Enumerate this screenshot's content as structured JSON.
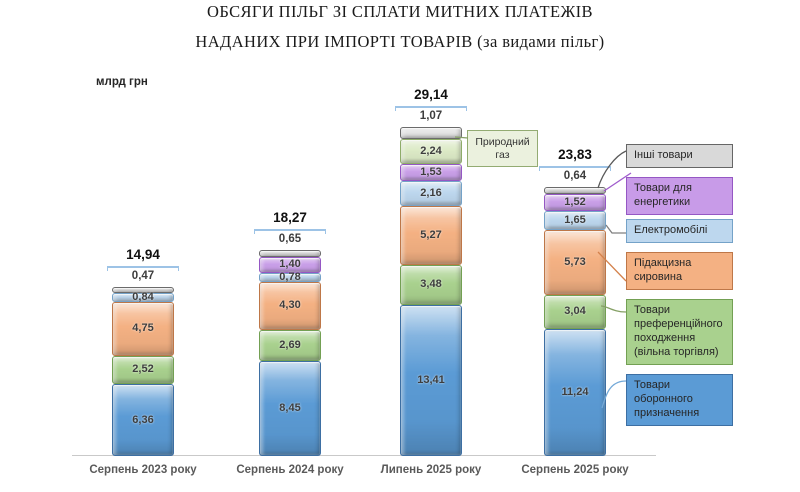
{
  "title": {
    "line1": "ОБСЯГИ ПІЛЬГ ЗІ СПЛАТИ МИТНИХ ПЛАТЕЖІВ",
    "line2": "НАДАНИХ ПРИ ІМПОРТІ ТОВАРІВ (за видами пільг)"
  },
  "unit_label": "млрд грн",
  "callout": {
    "text": "Природний газ"
  },
  "chart_data": {
    "type": "bar",
    "stacked": true,
    "title": "ОБСЯГИ ПІЛЬГ ЗІ СПЛАТИ МИТНИХ ПЛАТЕЖІВ НАДАНИХ ПРИ ІМПОРТІ ТОВАРІВ (за видами пільг)",
    "unit": "млрд грн",
    "ylabel": "млрд грн",
    "ylim": [
      0,
      30
    ],
    "grid": false,
    "legend_position": "right",
    "categories": [
      "Серпень 2023 року",
      "Серпень 2024 року",
      "Липень 2025 року",
      "Серпень 2025 року"
    ],
    "totals": [
      "14,94",
      "18,27",
      "29,14",
      "23,83"
    ],
    "series": [
      {
        "key": "defense",
        "name": "Товари оборонного призначення",
        "fill": "#5B9BD5",
        "border": "#3D6FA3",
        "values": [
          "6,36",
          "8,45",
          "13,41",
          "11,24"
        ]
      },
      {
        "key": "preferential",
        "name": "Товари преференційного походження (вільна торгівля)",
        "fill": "#A9D18E",
        "border": "#73A053",
        "values": [
          "2,52",
          "2,69",
          "3,48",
          "3,04"
        ]
      },
      {
        "key": "excise",
        "name": "Підакцизна сировина",
        "fill": "#F4B183",
        "border": "#BE7748",
        "values": [
          "4,75",
          "4,30",
          "5,27",
          "5,73"
        ]
      },
      {
        "key": "ev",
        "name": "Електромобілі",
        "fill": "#BDD7EE",
        "border": "#74A2C8",
        "values": [
          "0,84",
          "0,78",
          "2,16",
          "1,65"
        ]
      },
      {
        "key": "energy",
        "name": "Товари для енергетики",
        "fill": "#C99FE8",
        "border": "#9557C4",
        "values": [
          null,
          "1,40",
          "1,53",
          "1,52"
        ]
      },
      {
        "key": "gas",
        "name": "Природний газ",
        "fill": "#DCEAC6",
        "border": "#8EAC69",
        "values": [
          null,
          null,
          "2,24",
          null
        ]
      },
      {
        "key": "other",
        "name": "Інші товари",
        "fill": "#E4E4E4",
        "border": "#6B6B6B",
        "values": [
          "0,47",
          "0,65",
          "1,07",
          "0,64"
        ]
      }
    ],
    "annotation": "Природний газ"
  },
  "legend": {
    "items": [
      {
        "key": "other",
        "label": "Інші товари",
        "fill": "#D9D9D9",
        "border": "#666666"
      },
      {
        "key": "energy",
        "label": "Товари для енергетики",
        "fill": "#C89BE8",
        "border": "#9557C4"
      },
      {
        "key": "ev",
        "label": "Електромобілі",
        "fill": "#BDD7EE",
        "border": "#74A2C8"
      },
      {
        "key": "excise",
        "label": "Підакцизна сировина",
        "fill": "#F4B183",
        "border": "#BE7748"
      },
      {
        "key": "preferential",
        "label": "Товари преференційного походження (вільна торгівля)",
        "fill": "#A9D18E",
        "border": "#73A053"
      },
      {
        "key": "defense",
        "label": "Товари оборонного призначення",
        "fill": "#5B9BD5",
        "border": "#3D6FA3"
      }
    ]
  }
}
